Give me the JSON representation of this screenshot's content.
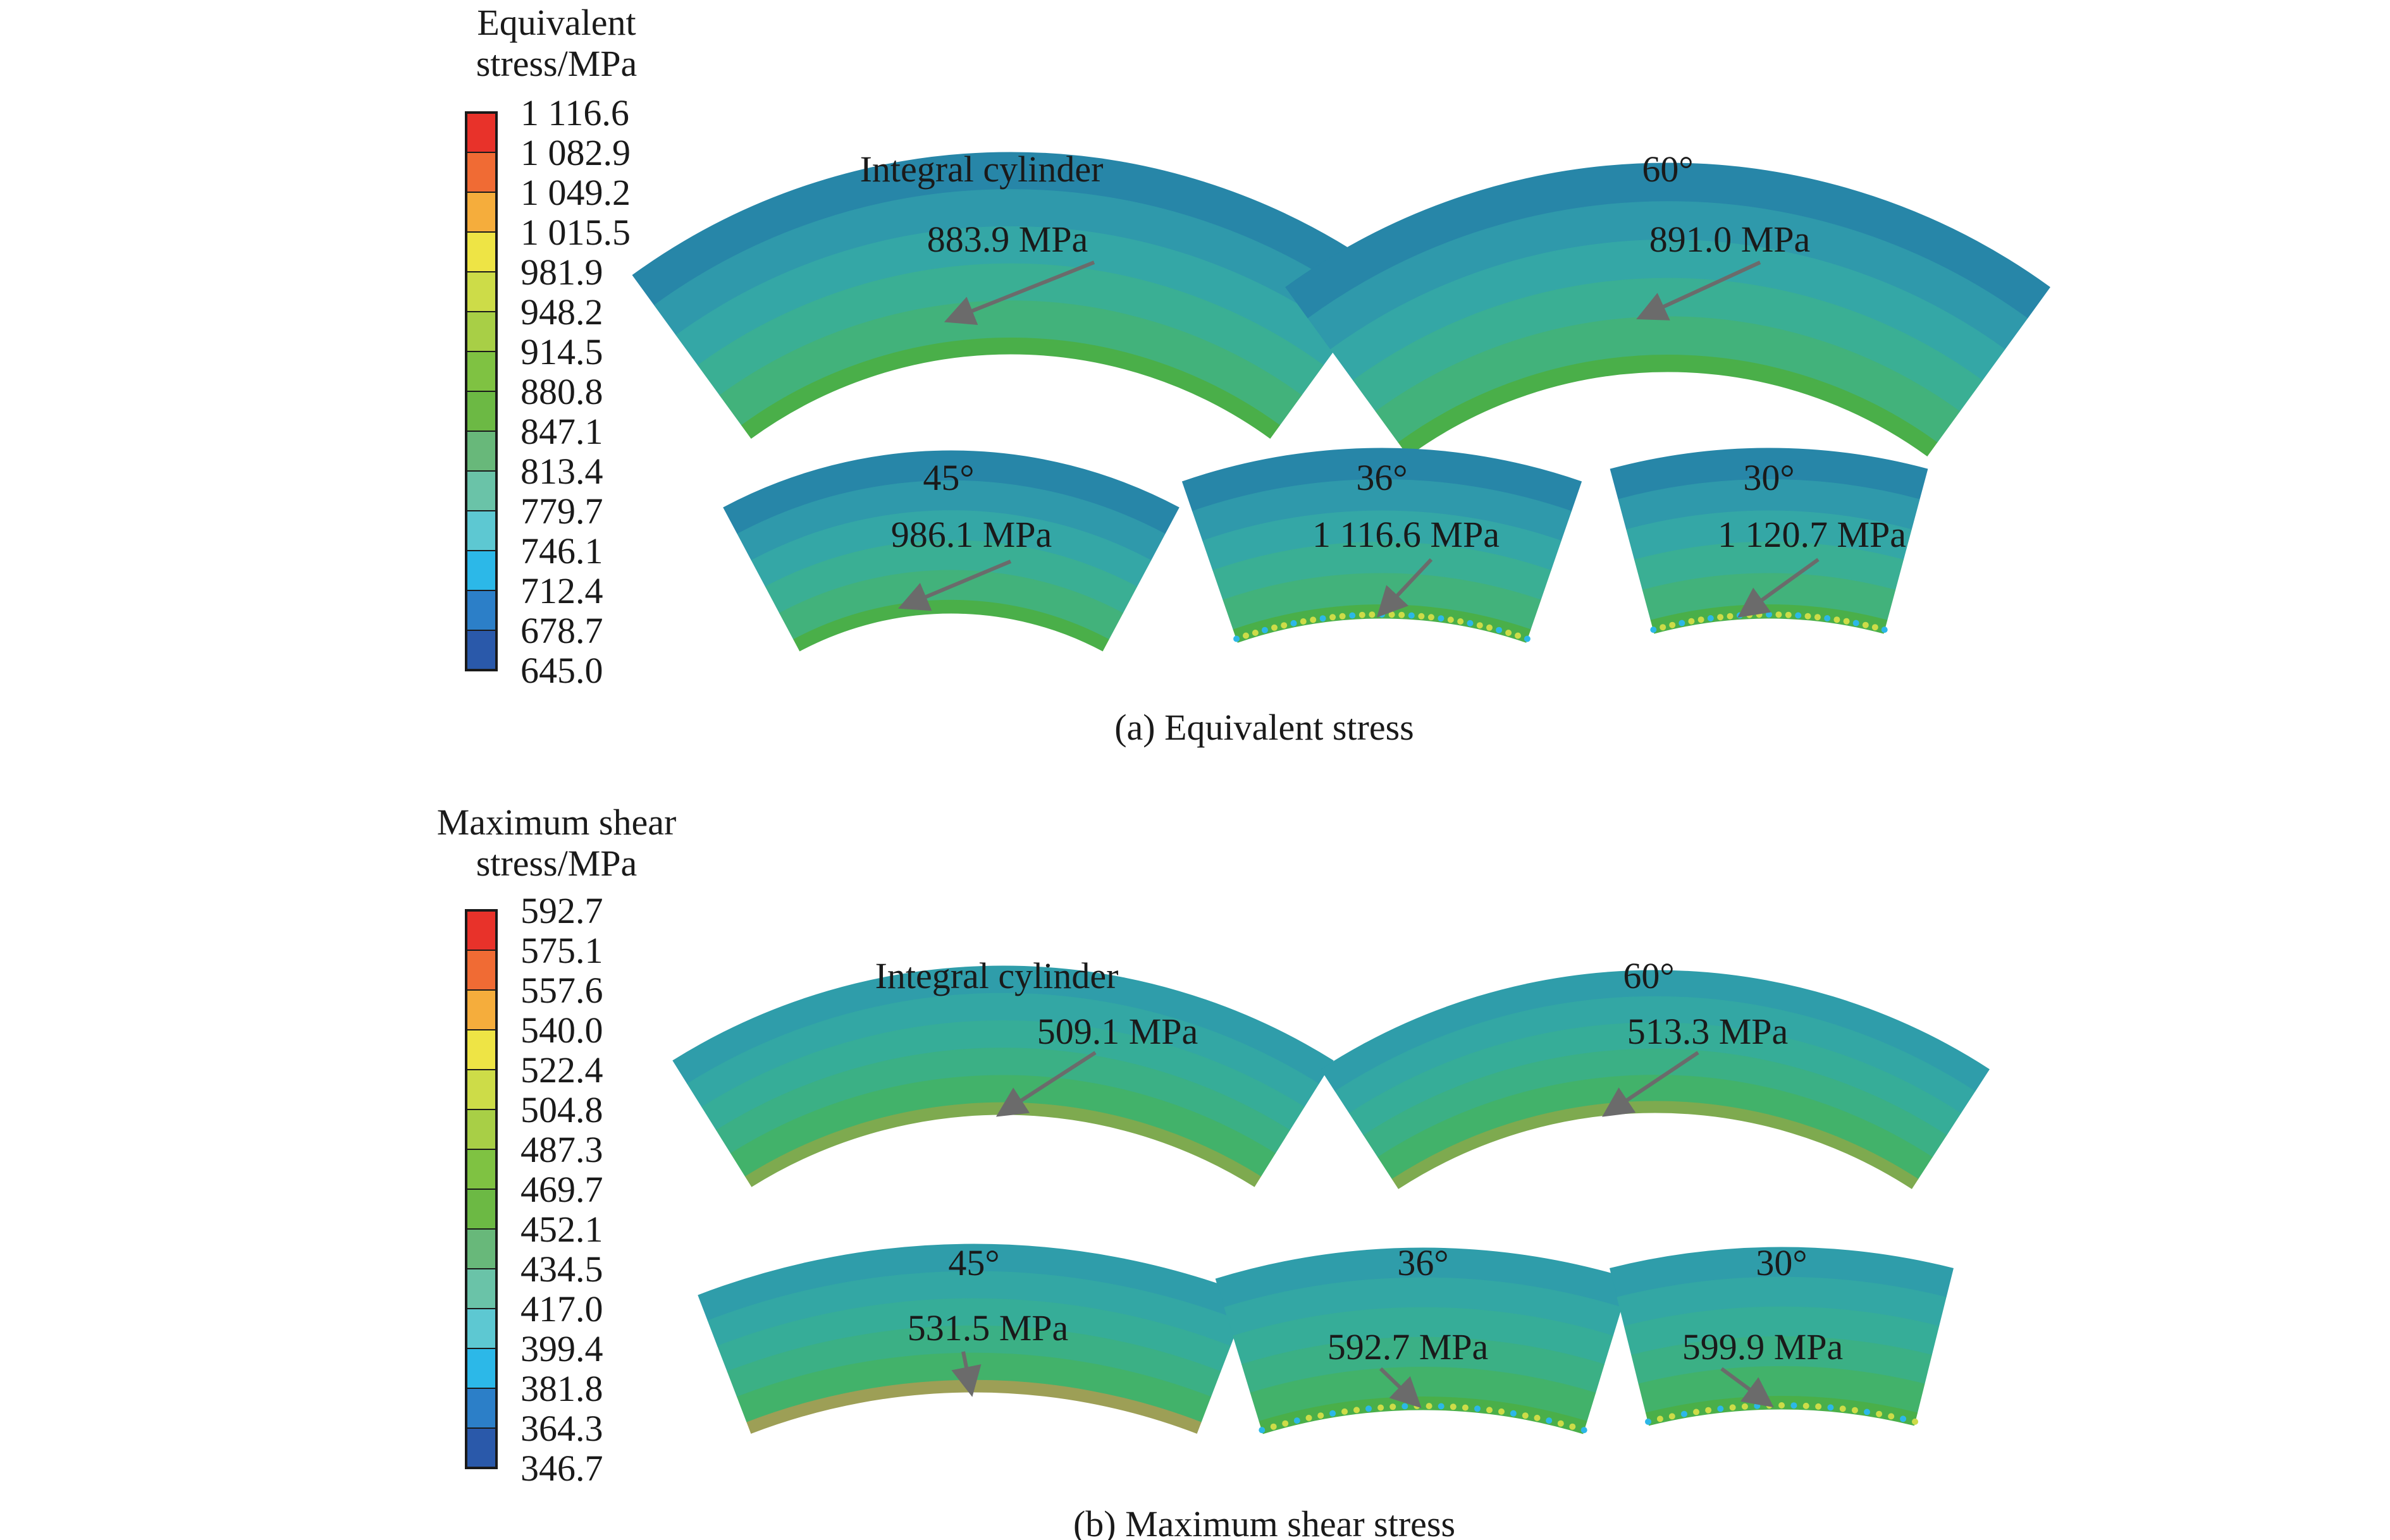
{
  "panels": [
    {
      "id": "a",
      "caption": "(a) Equivalent stress",
      "legend": {
        "title_lines": [
          "Equivalent",
          "stress/MPa"
        ],
        "ticks": [
          "1 116.6",
          "1 082.9",
          "1 049.2",
          "1 015.5",
          "981.9",
          "948.2",
          "914.5",
          "880.8",
          "847.1",
          "813.4",
          "779.7",
          "746.1",
          "712.4",
          "678.7",
          "645.0"
        ]
      },
      "segments": [
        {
          "label": "Integral cylinder",
          "peak": "883.9 MPa"
        },
        {
          "label": "60°",
          "peak": "891.0 MPa"
        },
        {
          "label": "45°",
          "peak": "986.1 MPa"
        },
        {
          "label": "36°",
          "peak": "1 116.6 MPa"
        },
        {
          "label": "30°",
          "peak": "1 120.7 MPa"
        }
      ]
    },
    {
      "id": "b",
      "caption": "(b) Maximum shear stress",
      "legend": {
        "title_lines": [
          "Maximum shear",
          "stress/MPa"
        ],
        "ticks": [
          "592.7",
          "575.1",
          "557.6",
          "540.0",
          "522.4",
          "504.8",
          "487.3",
          "469.7",
          "452.1",
          "434.5",
          "417.0",
          "399.4",
          "381.8",
          "364.3",
          "346.7"
        ]
      },
      "segments": [
        {
          "label": "Integral cylinder",
          "peak": "509.1 MPa"
        },
        {
          "label": "60°",
          "peak": "513.3 MPa"
        },
        {
          "label": "45°",
          "peak": "531.5 MPa"
        },
        {
          "label": "36°",
          "peak": "592.7 MPa"
        },
        {
          "label": "30°",
          "peak": "599.9 MPa"
        }
      ]
    }
  ],
  "colors": {
    "colormap": [
      "#e8322a",
      "#f06b34",
      "#f5ad3c",
      "#eee445",
      "#cddc48",
      "#a8cf46",
      "#7fc242",
      "#6cb944",
      "#68b87a",
      "#6ac3a8",
      "#5dc8d2",
      "#2cb8e8",
      "#2c7fc8",
      "#2a59aa"
    ],
    "arrow": "#6b6b6b",
    "text": "#1a1a1a"
  }
}
